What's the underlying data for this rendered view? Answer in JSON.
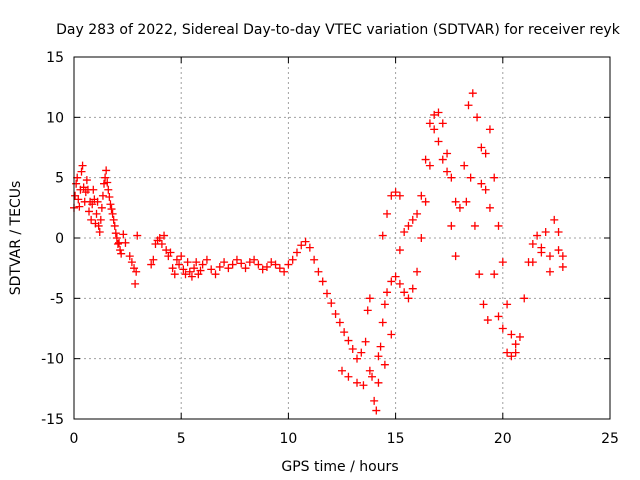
{
  "chart_data": {
    "type": "scatter",
    "title": "Day 283 of 2022, Sidereal Day-to-day VTEC variation (SDTVAR) for receiver reyk",
    "xlabel": "GPS time / hours",
    "ylabel": "SDTVAR / TECUs",
    "xlim": [
      0,
      25
    ],
    "ylim": [
      -15,
      15
    ],
    "xticks": [
      0,
      5,
      10,
      15,
      20,
      25
    ],
    "yticks": [
      -15,
      -10,
      -5,
      0,
      5,
      10,
      15
    ],
    "xtick_labels": [
      "0",
      "5",
      "10",
      "15",
      "20",
      "25"
    ],
    "ytick_labels": [
      "-15",
      "-10",
      "-5",
      "0",
      "5",
      "10",
      "15"
    ],
    "grid": true,
    "marker": "+",
    "series": [
      {
        "name": "SDTVAR",
        "color": "#ff0000",
        "points": [
          [
            0.0,
            2.5
          ],
          [
            0.05,
            3.5
          ],
          [
            0.1,
            4.5
          ],
          [
            0.15,
            5.0
          ],
          [
            0.2,
            3.2
          ],
          [
            0.25,
            2.6
          ],
          [
            0.3,
            4.0
          ],
          [
            0.35,
            5.5
          ],
          [
            0.4,
            6.0
          ],
          [
            0.45,
            4.2
          ],
          [
            0.5,
            3.0
          ],
          [
            0.55,
            3.8
          ],
          [
            0.6,
            4.8
          ],
          [
            0.65,
            4.0
          ],
          [
            0.7,
            2.2
          ],
          [
            0.75,
            3.0
          ],
          [
            0.8,
            1.5
          ],
          [
            0.85,
            2.8
          ],
          [
            0.9,
            4.0
          ],
          [
            0.95,
            3.2
          ],
          [
            1.0,
            1.2
          ],
          [
            1.05,
            2.0
          ],
          [
            1.1,
            3.0
          ],
          [
            1.15,
            1.0
          ],
          [
            1.2,
            0.5
          ],
          [
            1.25,
            1.5
          ],
          [
            1.3,
            2.5
          ],
          [
            1.35,
            3.5
          ],
          [
            1.4,
            4.5
          ],
          [
            1.45,
            5.0
          ],
          [
            1.5,
            5.6
          ],
          [
            1.55,
            4.6
          ],
          [
            1.6,
            4.0
          ],
          [
            1.65,
            3.4
          ],
          [
            1.7,
            2.8
          ],
          [
            1.75,
            2.4
          ],
          [
            1.8,
            2.0
          ],
          [
            1.85,
            1.5
          ],
          [
            1.9,
            1.0
          ],
          [
            1.95,
            0.4
          ],
          [
            2.0,
            0.0
          ],
          [
            2.05,
            -0.5
          ],
          [
            2.1,
            -0.4
          ],
          [
            2.15,
            -1.0
          ],
          [
            2.2,
            -1.3
          ],
          [
            2.3,
            0.3
          ],
          [
            2.4,
            -0.4
          ],
          [
            2.6,
            -1.5
          ],
          [
            2.7,
            -2.0
          ],
          [
            2.8,
            -2.5
          ],
          [
            2.85,
            -3.8
          ],
          [
            2.9,
            -2.8
          ],
          [
            2.95,
            0.2
          ],
          [
            3.6,
            -2.2
          ],
          [
            3.7,
            -1.8
          ],
          [
            3.8,
            -0.5
          ],
          [
            3.9,
            -0.2
          ],
          [
            4.0,
            0.0
          ],
          [
            4.1,
            -0.5
          ],
          [
            4.2,
            0.2
          ],
          [
            4.3,
            -1.0
          ],
          [
            4.4,
            -1.5
          ],
          [
            4.5,
            -1.2
          ],
          [
            4.6,
            -2.5
          ],
          [
            4.7,
            -3.0
          ],
          [
            4.8,
            -1.8
          ],
          [
            4.9,
            -2.2
          ],
          [
            5.0,
            -1.5
          ],
          [
            5.1,
            -2.6
          ],
          [
            5.2,
            -3.0
          ],
          [
            5.3,
            -2.0
          ],
          [
            5.4,
            -2.8
          ],
          [
            5.5,
            -3.2
          ],
          [
            5.6,
            -2.5
          ],
          [
            5.7,
            -2.0
          ],
          [
            5.8,
            -3.0
          ],
          [
            5.9,
            -2.7
          ],
          [
            6.0,
            -2.2
          ],
          [
            6.2,
            -1.8
          ],
          [
            6.4,
            -2.6
          ],
          [
            6.6,
            -3.0
          ],
          [
            6.8,
            -2.4
          ],
          [
            7.0,
            -2.0
          ],
          [
            7.2,
            -2.5
          ],
          [
            7.4,
            -2.2
          ],
          [
            7.6,
            -1.8
          ],
          [
            7.8,
            -2.1
          ],
          [
            8.0,
            -2.5
          ],
          [
            8.2,
            -2.0
          ],
          [
            8.4,
            -1.8
          ],
          [
            8.6,
            -2.2
          ],
          [
            8.8,
            -2.6
          ],
          [
            9.0,
            -2.4
          ],
          [
            9.2,
            -2.0
          ],
          [
            9.4,
            -2.2
          ],
          [
            9.6,
            -2.5
          ],
          [
            9.8,
            -2.8
          ],
          [
            10.0,
            -2.2
          ],
          [
            10.2,
            -1.8
          ],
          [
            10.4,
            -1.2
          ],
          [
            10.6,
            -0.6
          ],
          [
            10.8,
            -0.3
          ],
          [
            11.0,
            -0.8
          ],
          [
            11.2,
            -1.8
          ],
          [
            11.4,
            -2.8
          ],
          [
            11.6,
            -3.6
          ],
          [
            11.8,
            -4.6
          ],
          [
            12.0,
            -5.4
          ],
          [
            12.2,
            -6.3
          ],
          [
            12.4,
            -7.0
          ],
          [
            12.6,
            -7.8
          ],
          [
            12.8,
            -8.5
          ],
          [
            13.0,
            -9.2
          ],
          [
            13.2,
            -10.0
          ],
          [
            13.4,
            -9.5
          ],
          [
            13.6,
            -8.6
          ],
          [
            13.7,
            -6.0
          ],
          [
            13.8,
            -5.0
          ],
          [
            13.9,
            -11.5
          ],
          [
            14.0,
            -13.5
          ],
          [
            14.1,
            -14.3
          ],
          [
            14.2,
            -12.0
          ],
          [
            14.3,
            -9.0
          ],
          [
            14.4,
            -7.0
          ],
          [
            14.5,
            -5.5
          ],
          [
            14.6,
            -4.5
          ],
          [
            14.8,
            -3.6
          ],
          [
            15.0,
            -3.2
          ],
          [
            15.2,
            -3.8
          ],
          [
            15.4,
            -4.5
          ],
          [
            15.6,
            -5.0
          ],
          [
            15.8,
            -4.2
          ],
          [
            16.0,
            -2.8
          ],
          [
            16.2,
            0.0
          ],
          [
            16.4,
            3.0
          ],
          [
            16.6,
            6.0
          ],
          [
            16.8,
            9.0
          ],
          [
            17.0,
            10.4
          ],
          [
            17.2,
            9.5
          ],
          [
            17.4,
            7.0
          ],
          [
            17.6,
            5.0
          ],
          [
            17.8,
            3.0
          ],
          [
            18.0,
            2.5
          ],
          [
            18.2,
            6.0
          ],
          [
            18.4,
            11.0
          ],
          [
            18.6,
            12.0
          ],
          [
            18.8,
            10.0
          ],
          [
            19.0,
            7.5
          ],
          [
            19.2,
            7.0
          ],
          [
            19.4,
            9.0
          ],
          [
            19.6,
            5.0
          ],
          [
            19.8,
            1.0
          ],
          [
            20.0,
            -2.0
          ],
          [
            20.2,
            -5.5
          ],
          [
            20.4,
            -8.0
          ],
          [
            20.6,
            -9.5
          ],
          [
            20.8,
            -8.2
          ],
          [
            21.0,
            -5.0
          ],
          [
            21.2,
            -2.0
          ],
          [
            21.4,
            -0.5
          ],
          [
            21.6,
            0.2
          ],
          [
            21.8,
            -0.8
          ],
          [
            22.0,
            0.5
          ],
          [
            22.2,
            -1.5
          ],
          [
            22.4,
            1.5
          ],
          [
            22.6,
            0.5
          ],
          [
            22.8,
            -1.5
          ],
          [
            12.5,
            -11.0
          ],
          [
            12.8,
            -11.5
          ],
          [
            13.2,
            -12.0
          ],
          [
            13.5,
            -12.2
          ],
          [
            13.8,
            -11.0
          ],
          [
            14.2,
            -9.8
          ],
          [
            14.5,
            -10.5
          ],
          [
            14.8,
            -8.0
          ],
          [
            15.2,
            -1.0
          ],
          [
            15.4,
            0.5
          ],
          [
            15.6,
            1.0
          ],
          [
            15.8,
            1.5
          ],
          [
            16.0,
            2.0
          ],
          [
            16.2,
            3.5
          ],
          [
            16.4,
            6.5
          ],
          [
            16.6,
            9.5
          ],
          [
            16.8,
            10.2
          ],
          [
            17.0,
            8.0
          ],
          [
            17.2,
            6.5
          ],
          [
            17.4,
            5.5
          ],
          [
            17.6,
            1.0
          ],
          [
            17.8,
            -1.5
          ],
          [
            14.4,
            0.2
          ],
          [
            14.6,
            2.0
          ],
          [
            14.8,
            3.5
          ],
          [
            15.0,
            3.8
          ],
          [
            15.2,
            3.5
          ],
          [
            19.0,
            4.5
          ],
          [
            19.2,
            4.0
          ],
          [
            19.4,
            2.5
          ],
          [
            19.6,
            -3.0
          ],
          [
            19.8,
            -6.5
          ],
          [
            20.0,
            -7.5
          ],
          [
            20.2,
            -9.5
          ],
          [
            20.4,
            -9.8
          ],
          [
            20.6,
            -8.8
          ],
          [
            21.4,
            -2.0
          ],
          [
            21.8,
            -1.2
          ],
          [
            22.2,
            -2.8
          ],
          [
            22.6,
            -1.0
          ],
          [
            22.8,
            -2.4
          ],
          [
            18.3,
            3.0
          ],
          [
            18.5,
            5.0
          ],
          [
            18.7,
            1.0
          ],
          [
            18.9,
            -3.0
          ],
          [
            19.1,
            -5.5
          ],
          [
            19.3,
            -6.8
          ]
        ]
      }
    ]
  }
}
